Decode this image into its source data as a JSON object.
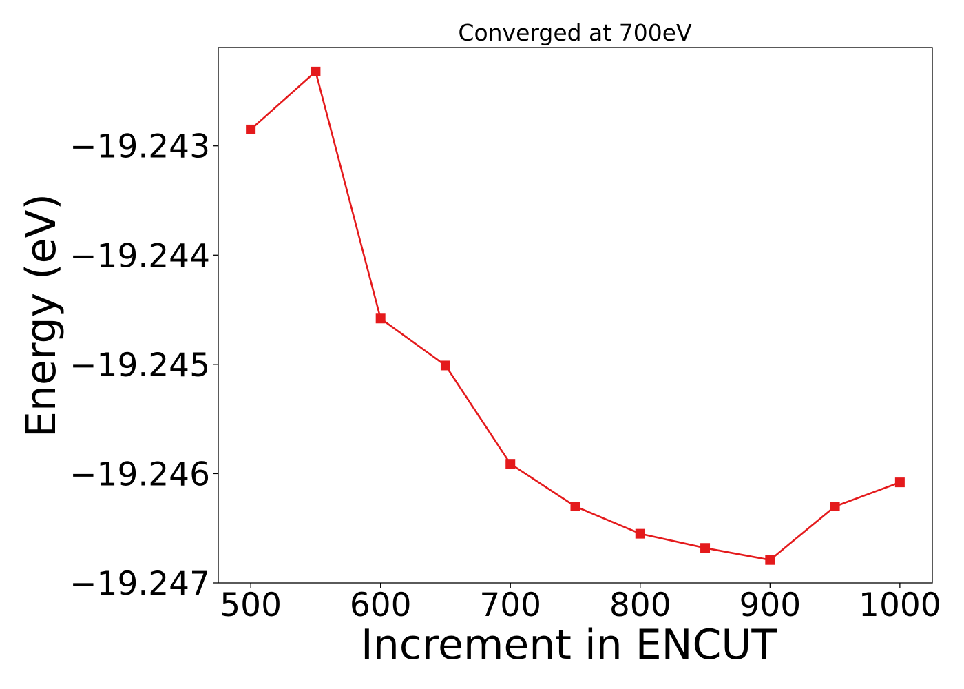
{
  "chart_data": {
    "type": "line",
    "title": "Converged at 700eV",
    "xlabel": "Increment in ENCUT",
    "ylabel": "Energy (eV)",
    "x": [
      500,
      550,
      600,
      650,
      700,
      750,
      800,
      850,
      900,
      950,
      1000
    ],
    "series": [
      {
        "values": [
          -19.24285,
          -19.24232,
          -19.24458,
          -19.24501,
          -19.24591,
          -19.2463,
          -19.24655,
          -19.24668,
          -19.24679,
          -19.2463,
          -19.24608
        ],
        "color": "#e41a1c",
        "marker": "square"
      }
    ],
    "xticks": [
      500,
      600,
      700,
      800,
      900,
      1000
    ],
    "xtick_labels": [
      "500",
      "600",
      "700",
      "800",
      "900",
      "1000"
    ],
    "yticks": [
      -19.243,
      -19.244,
      -19.245,
      -19.246,
      -19.247
    ],
    "ytick_labels": [
      "−19.243",
      "−19.244",
      "−19.245",
      "−19.246",
      "−19.247"
    ],
    "xlim": [
      475,
      1025
    ],
    "ylim": [
      -19.247,
      -19.2421
    ],
    "grid": false,
    "legend": false
  }
}
